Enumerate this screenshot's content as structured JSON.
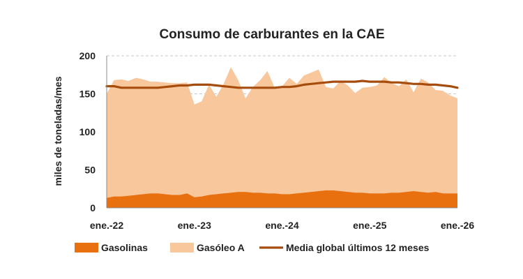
{
  "chart_data": {
    "type": "area",
    "title": "Consumo de carburantes en la CAE",
    "ylabel": "miles de toneladas/mes",
    "xlabel": "",
    "ylim": [
      0,
      200
    ],
    "yticks": [
      0,
      50,
      100,
      150,
      200
    ],
    "xticks": [
      "ene.-22",
      "ene.-23",
      "ene.-24",
      "ene.-25",
      "ene.-26"
    ],
    "grid": true,
    "legend_position": "bottom",
    "colors": {
      "gasolinas": "#e8700f",
      "gasoleo": "#f8c79c",
      "media": "#a64d0d"
    },
    "series": [
      {
        "name": "Gasolinas",
        "kind": "stacked-area",
        "values": [
          13,
          15,
          15,
          16,
          17,
          18,
          19,
          19,
          18,
          17,
          17,
          19,
          14,
          15,
          17,
          18,
          19,
          20,
          21,
          21,
          20,
          20,
          19,
          19,
          18,
          18,
          19,
          20,
          21,
          22,
          23,
          23,
          22,
          21,
          20,
          20,
          19,
          19,
          19,
          20,
          20,
          21,
          22,
          21,
          20,
          21,
          19,
          19,
          19
        ]
      },
      {
        "name": "Gasóleo A",
        "kind": "stacked-area",
        "values": [
          137,
          153,
          154,
          151,
          154,
          151,
          147,
          147,
          147,
          147,
          147,
          146,
          122,
          125,
          145,
          128,
          144,
          165,
          147,
          123,
          139,
          148,
          161,
          139,
          142,
          153,
          144,
          154,
          157,
          160,
          136,
          134,
          145,
          140,
          131,
          138,
          140,
          142,
          153,
          144,
          140,
          148,
          130,
          149,
          145,
          134,
          135,
          129,
          125
        ]
      },
      {
        "name": "Media global últimos 12 meses",
        "kind": "line",
        "values": [
          160,
          160,
          158,
          158,
          158,
          158,
          158,
          158,
          159,
          160,
          161,
          161,
          162,
          162,
          162,
          161,
          160,
          159,
          158,
          158,
          158,
          158,
          158,
          158,
          159,
          159,
          160,
          162,
          163,
          164,
          165,
          166,
          166,
          166,
          166,
          167,
          166,
          166,
          166,
          165,
          165,
          164,
          163,
          163,
          162,
          162,
          161,
          160,
          158
        ]
      }
    ]
  }
}
